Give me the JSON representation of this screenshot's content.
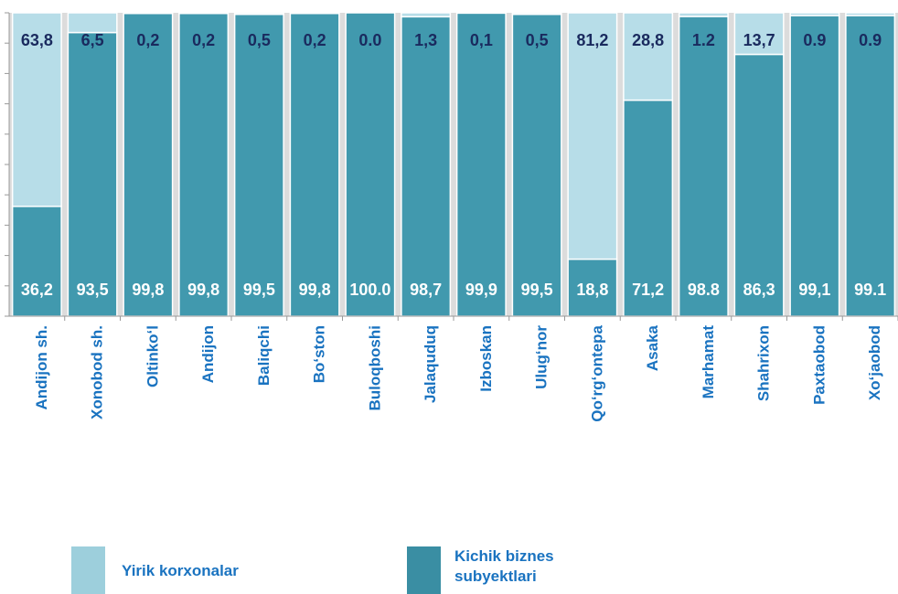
{
  "chart_data": {
    "type": "stacked_bar",
    "categories": [
      "Andijon sh.",
      "Xonobod sh.",
      "Oltinko‘l",
      "Andijon",
      "Baliqchi",
      "Bo‘ston",
      "Buloqboshi",
      "Jalaquduq",
      "Izboskan",
      "Ulug‘nor",
      "Qo‘rg‘ontepa",
      "Asaka",
      "Marhamat",
      "Shahrixon",
      "Paxtaobod",
      "Xo‘jaobod"
    ],
    "series": [
      {
        "name": "Kichik biznes subyektlari",
        "color": "#4199ae",
        "legend_color": "#3a8ea3",
        "values": [
          36.2,
          93.5,
          99.8,
          99.8,
          99.5,
          99.8,
          100.0,
          98.7,
          99.9,
          99.5,
          18.8,
          71.2,
          98.8,
          86.3,
          99.1,
          99.1
        ],
        "value_labels": [
          "36,2",
          "93,5",
          "99,8",
          "99,8",
          "99,5",
          "99,8",
          "100.0",
          "98,7",
          "99,9",
          "99,5",
          "18,8",
          "71,2",
          "98.8",
          "86,3",
          "99,1",
          "99.1"
        ]
      },
      {
        "name": "Yirik korxonalar",
        "color": "#b7dde8",
        "legend_color": "#9dcfdc",
        "values": [
          63.8,
          6.5,
          0.2,
          0.2,
          0.5,
          0.2,
          0.0,
          1.3,
          0.1,
          0.5,
          81.2,
          28.8,
          1.2,
          13.7,
          0.9,
          0.9
        ],
        "value_labels": [
          "63,8",
          "6,5",
          "0,2",
          "0,2",
          "0,5",
          "0,2",
          "0.0",
          "1,3",
          "0,1",
          "0,5",
          "81,2",
          "28,8",
          "1.2",
          "13,7",
          "0.9",
          "0.9"
        ]
      }
    ],
    "ylim": [
      0,
      100
    ],
    "yticks": [
      0,
      10,
      20,
      30,
      40,
      50,
      60,
      70,
      80,
      90,
      100
    ]
  }
}
